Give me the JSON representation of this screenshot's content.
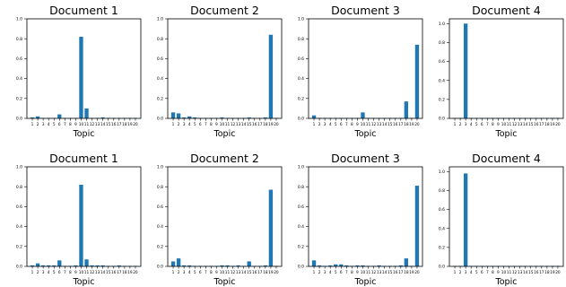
{
  "chart_data": [
    {
      "type": "bar",
      "title": "Document 1",
      "xlabel": "Topic",
      "ylabel": "",
      "ylim": [
        0,
        1.0
      ],
      "yticks": [
        "0.0",
        "0.2",
        "0.4",
        "0.6",
        "0.8",
        "1.0"
      ],
      "categories": [
        "1",
        "2",
        "3",
        "4",
        "5",
        "6",
        "7",
        "8",
        "9",
        "10",
        "11",
        "12",
        "13",
        "14",
        "15",
        "16",
        "17",
        "18",
        "19",
        "20"
      ],
      "values": [
        0.01,
        0.02,
        0.005,
        0.005,
        0.005,
        0.04,
        0.005,
        0.005,
        0.005,
        0.82,
        0.1,
        0.005,
        0.005,
        0.01,
        0.005,
        0.005,
        0.005,
        0.005,
        0.005,
        0.005
      ],
      "color": "#1f77b4",
      "grid": false
    },
    {
      "type": "bar",
      "title": "Document 2",
      "xlabel": "Topic",
      "ylabel": "",
      "ylim": [
        0,
        1.0
      ],
      "yticks": [
        "0.0",
        "0.2",
        "0.4",
        "0.6",
        "0.8",
        "1.0"
      ],
      "categories": [
        "1",
        "2",
        "3",
        "4",
        "5",
        "6",
        "7",
        "8",
        "9",
        "10",
        "11",
        "12",
        "13",
        "14",
        "15",
        "16",
        "17",
        "18",
        "19",
        "20"
      ],
      "values": [
        0.06,
        0.05,
        0.01,
        0.02,
        0.01,
        0.005,
        0.005,
        0.005,
        0.005,
        0.01,
        0.005,
        0.005,
        0.005,
        0.005,
        0.01,
        0.005,
        0.005,
        0.01,
        0.84,
        0.005
      ],
      "color": "#1f77b4",
      "grid": false
    },
    {
      "type": "bar",
      "title": "Document 3",
      "xlabel": "Topic",
      "ylabel": "",
      "ylim": [
        0,
        1.0
      ],
      "yticks": [
        "0.0",
        "0.2",
        "0.4",
        "0.6",
        "0.8",
        "1.0"
      ],
      "categories": [
        "1",
        "2",
        "3",
        "4",
        "5",
        "6",
        "7",
        "8",
        "9",
        "10",
        "11",
        "12",
        "13",
        "14",
        "15",
        "16",
        "17",
        "18",
        "19",
        "20"
      ],
      "values": [
        0.03,
        0.005,
        0.005,
        0.005,
        0.005,
        0.005,
        0.005,
        0.005,
        0.005,
        0.06,
        0.005,
        0.005,
        0.005,
        0.005,
        0.005,
        0.005,
        0.005,
        0.17,
        0.005,
        0.74
      ],
      "color": "#1f77b4",
      "grid": false
    },
    {
      "type": "bar",
      "title": "Document 4",
      "xlabel": "Topic",
      "ylabel": "",
      "ylim": [
        0,
        1.05
      ],
      "yticks": [
        "0.0",
        "0.2",
        "0.4",
        "0.6",
        "0.8",
        "1.0"
      ],
      "categories": [
        "1",
        "2",
        "3",
        "4",
        "5",
        "6",
        "7",
        "8",
        "9",
        "10",
        "11",
        "12",
        "13",
        "14",
        "15",
        "16",
        "17",
        "18",
        "19",
        "20"
      ],
      "values": [
        0.005,
        0.005,
        1.0,
        0.005,
        0.005,
        0.005,
        0.005,
        0.005,
        0.005,
        0.005,
        0.005,
        0.005,
        0.005,
        0.005,
        0.005,
        0.005,
        0.005,
        0.005,
        0.005,
        0.005
      ],
      "color": "#1f77b4",
      "grid": false
    },
    {
      "type": "bar",
      "title": "Document 1",
      "xlabel": "Topic",
      "ylabel": "",
      "ylim": [
        0,
        1.0
      ],
      "yticks": [
        "0.0",
        "0.2",
        "0.4",
        "0.6",
        "0.8",
        "1.0"
      ],
      "categories": [
        "1",
        "2",
        "3",
        "4",
        "5",
        "6",
        "7",
        "8",
        "9",
        "10",
        "11",
        "12",
        "13",
        "14",
        "15",
        "16",
        "17",
        "18",
        "19",
        "20"
      ],
      "values": [
        0.01,
        0.03,
        0.01,
        0.01,
        0.01,
        0.06,
        0.005,
        0.005,
        0.01,
        0.82,
        0.07,
        0.01,
        0.01,
        0.01,
        0.005,
        0.005,
        0.01,
        0.005,
        0.005,
        0.005
      ],
      "color": "#1f77b4",
      "grid": false
    },
    {
      "type": "bar",
      "title": "Document 2",
      "xlabel": "Topic",
      "ylabel": "",
      "ylim": [
        0,
        1.0
      ],
      "yticks": [
        "0.0",
        "0.2",
        "0.4",
        "0.6",
        "0.8",
        "1.0"
      ],
      "categories": [
        "1",
        "2",
        "3",
        "4",
        "5",
        "6",
        "7",
        "8",
        "9",
        "10",
        "11",
        "12",
        "13",
        "14",
        "15",
        "16",
        "17",
        "18",
        "19",
        "20"
      ],
      "values": [
        0.05,
        0.08,
        0.01,
        0.01,
        0.005,
        0.005,
        0.005,
        0.005,
        0.005,
        0.01,
        0.01,
        0.005,
        0.01,
        0.005,
        0.05,
        0.005,
        0.005,
        0.01,
        0.77,
        0.005
      ],
      "color": "#1f77b4",
      "grid": false
    },
    {
      "type": "bar",
      "title": "Document 3",
      "xlabel": "Topic",
      "ylabel": "",
      "ylim": [
        0,
        1.0
      ],
      "yticks": [
        "0.0",
        "0.2",
        "0.4",
        "0.6",
        "0.8",
        "1.0"
      ],
      "categories": [
        "1",
        "2",
        "3",
        "4",
        "5",
        "6",
        "7",
        "8",
        "9",
        "10",
        "11",
        "12",
        "13",
        "14",
        "15",
        "16",
        "17",
        "18",
        "19",
        "20"
      ],
      "values": [
        0.06,
        0.01,
        0.005,
        0.01,
        0.02,
        0.02,
        0.01,
        0.005,
        0.01,
        0.01,
        0.005,
        0.005,
        0.01,
        0.005,
        0.005,
        0.005,
        0.01,
        0.08,
        0.005,
        0.81
      ],
      "color": "#1f77b4",
      "grid": false
    },
    {
      "type": "bar",
      "title": "Document 4",
      "xlabel": "Topic",
      "ylabel": "",
      "ylim": [
        0,
        1.05
      ],
      "yticks": [
        "0.0",
        "0.2",
        "0.4",
        "0.6",
        "0.8",
        "1.0"
      ],
      "categories": [
        "1",
        "2",
        "3",
        "4",
        "5",
        "6",
        "7",
        "8",
        "9",
        "10",
        "11",
        "12",
        "13",
        "14",
        "15",
        "16",
        "17",
        "18",
        "19",
        "20"
      ],
      "values": [
        0.005,
        0.005,
        0.98,
        0.005,
        0.005,
        0.005,
        0.005,
        0.005,
        0.005,
        0.005,
        0.005,
        0.005,
        0.005,
        0.005,
        0.005,
        0.005,
        0.005,
        0.005,
        0.005,
        0.005
      ],
      "color": "#1f77b4",
      "grid": false
    }
  ]
}
